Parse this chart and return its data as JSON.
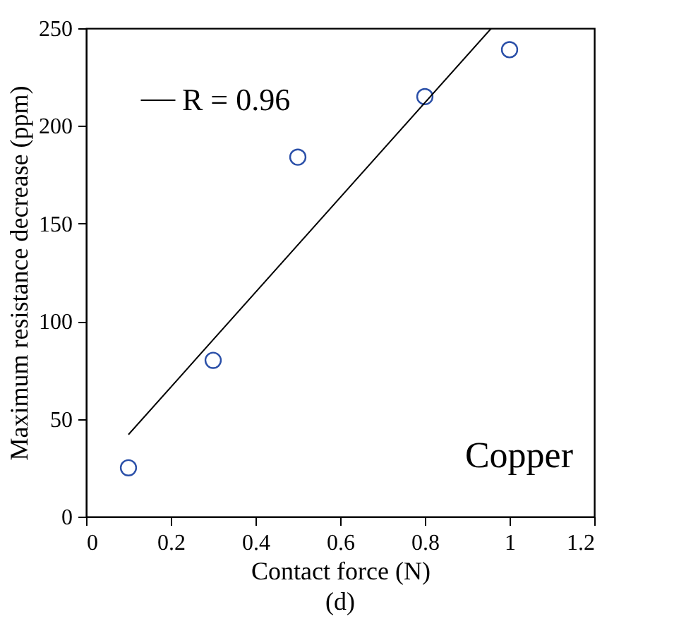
{
  "chart_data": {
    "type": "scatter",
    "title": "(d)",
    "xlabel": "Contact force (N)",
    "ylabel": "Maximum resistance decrease (ppm)",
    "x": [
      0.1,
      0.3,
      0.5,
      0.8,
      1.0
    ],
    "series": [
      {
        "type": "scatter",
        "color": "#2a4fa8",
        "values": [
          25,
          80,
          184,
          215,
          239
        ],
        "marker": "circle"
      },
      {
        "type": "line",
        "name": "R = 0.96",
        "color": "#000000",
        "x": [
          0.1,
          0.957
        ],
        "values": [
          42,
          250
        ],
        "marker": "none",
        "line_style": "solid"
      }
    ],
    "xlim": [
      0,
      1.2
    ],
    "xticks": [
      0,
      0.2,
      0.4,
      0.6,
      0.8,
      1,
      1.2
    ],
    "ylim": [
      0,
      250
    ],
    "yticks": [
      0,
      50,
      100,
      150,
      200,
      250
    ],
    "grid": false,
    "legend": "top left",
    "annotations": [
      "Copper"
    ]
  }
}
